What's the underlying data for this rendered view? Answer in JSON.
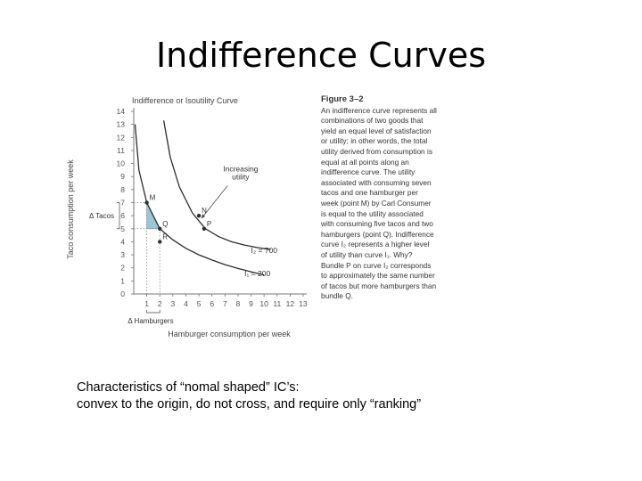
{
  "slide": {
    "title": "Indifference Curves",
    "caption_line1": "Characteristics of “nomal shaped” IC’s:",
    "caption_line2": "convex to the origin, do not cross, and require only “ranking”"
  },
  "figure": {
    "label": "Figure 3–2",
    "text": "An indifference curve represents all combinations of two goods that yield an equal level of satisfaction or utility; in other words, the total utility derived from consumption is equal at all points along an indifference curve. The utility associated with consuming seven tacos and one hamburger per week (point M) by Carl Consumer is equal to the utility associated with consuming five tacos and two hamburgers (point Q). Indifference curve I₂ represents a higher level of utility than curve I₁. Why? Bundle P on curve I₂ corresponds to approximately the same number of tacos but more hamburgers than bundle Q."
  },
  "chart_data": {
    "type": "line",
    "title": "Indifference or Isoutility Curve",
    "xlabel": "Hamburger consumption per week",
    "ylabel": "Taco consumption per week",
    "xlim": [
      0,
      13
    ],
    "ylim": [
      0,
      14
    ],
    "x_ticks": [
      1,
      2,
      3,
      4,
      5,
      6,
      7,
      8,
      9,
      10,
      11,
      12,
      13
    ],
    "y_ticks": [
      0,
      1,
      2,
      3,
      4,
      5,
      6,
      7,
      8,
      9,
      10,
      11,
      12,
      13,
      14
    ],
    "series": [
      {
        "name": "I₁ = 200",
        "points": [
          [
            0.1,
            13.0
          ],
          [
            0.4,
            9.5
          ],
          [
            1,
            7
          ],
          [
            2,
            5
          ],
          [
            3,
            4.15
          ],
          [
            4,
            3.5
          ],
          [
            5,
            3.0
          ],
          [
            6,
            2.6
          ],
          [
            7,
            2.25
          ],
          [
            8,
            1.95
          ],
          [
            9,
            1.7
          ],
          [
            10,
            1.45
          ]
        ]
      },
      {
        "name": "I₂ = 700",
        "points": [
          [
            2.3,
            13.3
          ],
          [
            2.8,
            10.5
          ],
          [
            3.5,
            8.2
          ],
          [
            4.5,
            6.2
          ],
          [
            5.5,
            5.0
          ],
          [
            6.5,
            4.4
          ],
          [
            7.5,
            4.0
          ],
          [
            8.5,
            3.75
          ],
          [
            9.5,
            3.55
          ],
          [
            10.5,
            3.4
          ]
        ]
      }
    ],
    "points": [
      {
        "label": "M",
        "x": 1,
        "y": 7
      },
      {
        "label": "Q",
        "x": 2,
        "y": 5
      },
      {
        "label": "R",
        "x": 2,
        "y": 4
      },
      {
        "label": "N",
        "x": 5,
        "y": 6
      },
      {
        "label": "P",
        "x": 5.4,
        "y": 5
      }
    ],
    "annotations": {
      "increasing_utility": "Increasing utility",
      "delta_tacos": "Δ Tacos",
      "delta_hamburgers": "Δ Hamburgers"
    },
    "grid": false,
    "legend": "none"
  }
}
